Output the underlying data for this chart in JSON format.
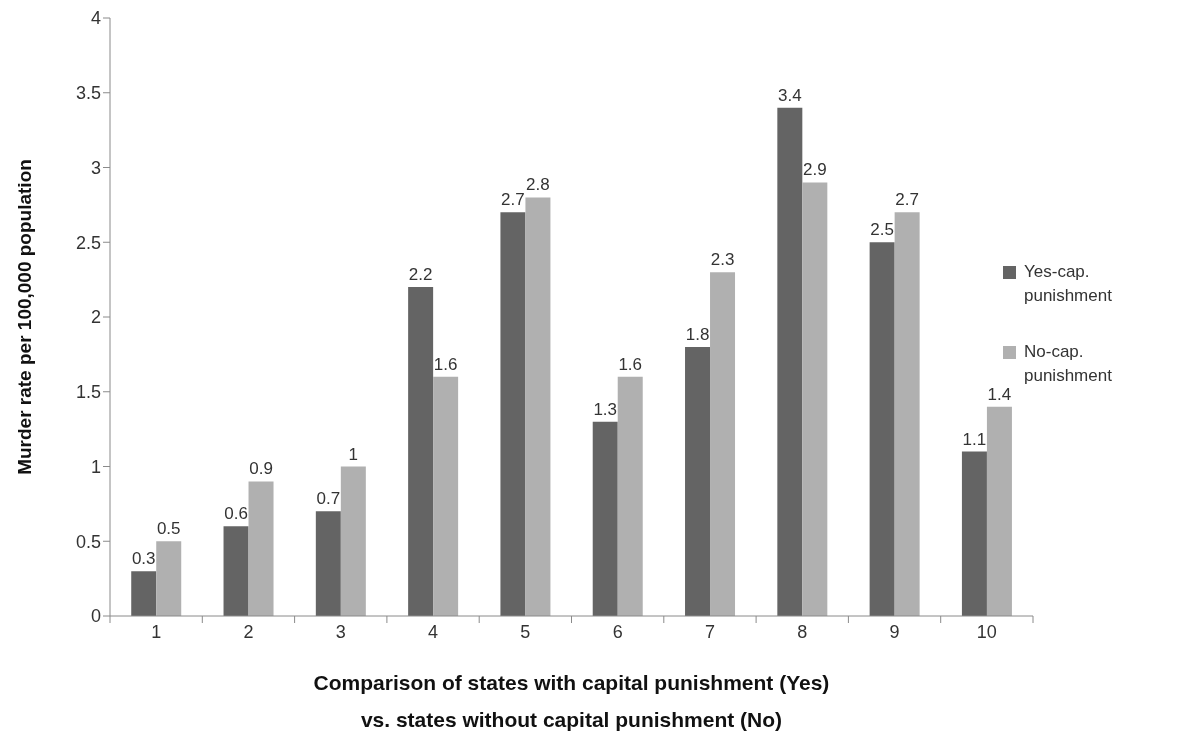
{
  "chart_data": {
    "type": "bar",
    "xlabel": "Comparison of states with capital punishment (Yes) vs. states without capital punishment (No)",
    "ylabel": "Murder rate per 100,000 population",
    "categories": [
      "1",
      "2",
      "3",
      "4",
      "5",
      "6",
      "7",
      "8",
      "9",
      "10"
    ],
    "series": [
      {
        "name": "Yes-cap. punishment",
        "color": "#646464",
        "values": [
          0.3,
          0.6,
          0.7,
          2.2,
          2.7,
          1.3,
          1.8,
          3.4,
          2.5,
          1.1
        ]
      },
      {
        "name": "No-cap. punishment",
        "color": "#b0b0b0",
        "values": [
          0.5,
          0.9,
          1,
          1.6,
          2.8,
          1.6,
          2.3,
          2.9,
          2.7,
          1.4
        ]
      }
    ],
    "ylim": [
      0,
      4
    ],
    "yticks": [
      0,
      0.5,
      1,
      1.5,
      2,
      2.5,
      3,
      3.5,
      4
    ],
    "data_labels": true,
    "legend": "right"
  }
}
